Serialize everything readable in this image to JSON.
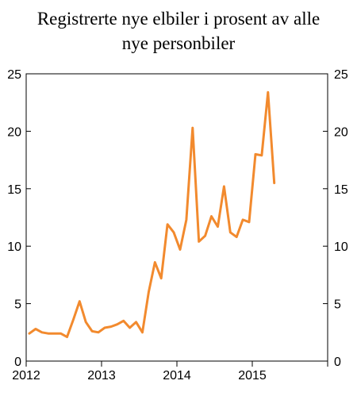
{
  "chart_data": {
    "type": "line",
    "title_lines": [
      "Registrerte nye elbiler i prosent av alle",
      "nye personbiler"
    ],
    "xlabel": "",
    "ylabel": "",
    "ylim": [
      0,
      25
    ],
    "y_ticks": [
      0,
      5,
      10,
      15,
      20,
      25
    ],
    "x_ticks": [
      2012,
      2013,
      2014,
      2015
    ],
    "xlim": [
      "2012-01",
      "2015-12"
    ],
    "grid": false,
    "legend": "none",
    "series": [
      {
        "color": "#F28A2E",
        "x": [
          "2012-01",
          "2012-02",
          "2012-03",
          "2012-04",
          "2012-05",
          "2012-06",
          "2012-07",
          "2012-08",
          "2012-09",
          "2012-10",
          "2012-11",
          "2012-12",
          "2013-01",
          "2013-02",
          "2013-03",
          "2013-04",
          "2013-05",
          "2013-06",
          "2013-07",
          "2013-08",
          "2013-09",
          "2013-10",
          "2013-11",
          "2013-12",
          "2014-01",
          "2014-02",
          "2014-03",
          "2014-04",
          "2014-05",
          "2014-06",
          "2014-07",
          "2014-08",
          "2014-09",
          "2014-10",
          "2014-11",
          "2014-12",
          "2015-01",
          "2015-02",
          "2015-03",
          "2015-04"
        ],
        "values": [
          2.4,
          2.8,
          2.5,
          2.4,
          2.4,
          2.4,
          2.1,
          3.6,
          5.2,
          3.4,
          2.6,
          2.5,
          2.9,
          3.0,
          3.2,
          3.5,
          2.9,
          3.4,
          2.5,
          6.0,
          8.6,
          7.2,
          11.9,
          11.2,
          9.7,
          12.3,
          20.3,
          10.4,
          10.9,
          12.6,
          11.7,
          15.2,
          11.2,
          10.8,
          12.3,
          12.1,
          18.0,
          17.9,
          23.4,
          15.5
        ]
      }
    ]
  }
}
